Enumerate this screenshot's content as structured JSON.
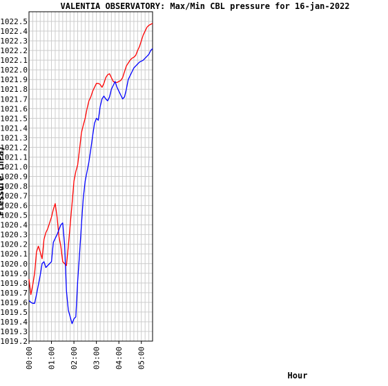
{
  "chart_data": {
    "type": "line",
    "title": "VALENTIA OBSERVATORY: Max/Min CBL pressure for 16-jan-2022",
    "xlabel": "Hour",
    "ylabel": "Pressure (hPa)",
    "ylim": [
      1019.2,
      1022.6
    ],
    "yticks": [
      "1019.2",
      "1019.3",
      "1019.4",
      "1019.5",
      "1019.6",
      "1019.7",
      "1019.8",
      "1019.9",
      "1020.0",
      "1020.1",
      "1020.2",
      "1020.3",
      "1020.4",
      "1020.5",
      "1020.6",
      "1020.7",
      "1020.8",
      "1020.9",
      "1021.0",
      "1021.1",
      "1021.2",
      "1021.3",
      "1021.4",
      "1021.5",
      "1021.6",
      "1021.7",
      "1021.8",
      "1021.9",
      "1022.0",
      "1022.1",
      "1022.2",
      "1022.3",
      "1022.4",
      "1022.5"
    ],
    "xlim_minutes": [
      0,
      330
    ],
    "xticks": [
      {
        "label": "00:00",
        "minutes": 0
      },
      {
        "label": "01:00",
        "minutes": 60
      },
      {
        "label": "02:00",
        "minutes": 120
      },
      {
        "label": "03:00",
        "minutes": 180
      },
      {
        "label": "04:00",
        "minutes": 240
      },
      {
        "label": "05:00",
        "minutes": 300
      }
    ],
    "grid": true,
    "series": [
      {
        "key": "max",
        "color": "#ff0000",
        "x_minutes": [
          0,
          5,
          10,
          15,
          20,
          25,
          30,
          35,
          40,
          45,
          50,
          55,
          60,
          65,
          70,
          75,
          80,
          85,
          90,
          95,
          100,
          105,
          110,
          115,
          120,
          125,
          130,
          135,
          140,
          145,
          150,
          155,
          160,
          165,
          170,
          175,
          180,
          185,
          190,
          195,
          200,
          205,
          210,
          215,
          220,
          225,
          230,
          235,
          240,
          245,
          250,
          255,
          260,
          265,
          270,
          275,
          280,
          285,
          290,
          295,
          300,
          305,
          310,
          315,
          320,
          325,
          330
        ],
        "values": [
          1019.84,
          1019.68,
          1019.78,
          1019.9,
          1020.12,
          1020.18,
          1020.12,
          1020.05,
          1020.25,
          1020.32,
          1020.36,
          1020.42,
          1020.48,
          1020.56,
          1020.62,
          1020.48,
          1020.28,
          1020.18,
          1020.02,
          1020.0,
          1019.98,
          1020.18,
          1020.4,
          1020.62,
          1020.85,
          1020.95,
          1021.02,
          1021.18,
          1021.35,
          1021.43,
          1021.5,
          1021.6,
          1021.68,
          1021.72,
          1021.78,
          1021.82,
          1021.86,
          1021.86,
          1021.85,
          1021.82,
          1021.86,
          1021.92,
          1021.95,
          1021.96,
          1021.92,
          1021.88,
          1021.87,
          1021.87,
          1021.88,
          1021.89,
          1021.92,
          1021.98,
          1022.04,
          1022.07,
          1022.1,
          1022.12,
          1022.13,
          1022.15,
          1022.2,
          1022.24,
          1022.3,
          1022.36,
          1022.4,
          1022.44,
          1022.46,
          1022.47,
          1022.48
        ]
      },
      {
        "key": "min",
        "color": "#0000ff",
        "x_minutes": [
          0,
          5,
          10,
          15,
          20,
          25,
          30,
          35,
          40,
          45,
          50,
          55,
          60,
          65,
          70,
          75,
          80,
          85,
          90,
          95,
          100,
          105,
          110,
          115,
          120,
          125,
          130,
          135,
          140,
          145,
          150,
          155,
          160,
          165,
          170,
          175,
          180,
          185,
          190,
          195,
          200,
          205,
          210,
          215,
          220,
          225,
          230,
          235,
          240,
          245,
          250,
          255,
          260,
          265,
          270,
          275,
          280,
          285,
          290,
          295,
          300,
          305,
          310,
          315,
          320,
          325,
          330
        ],
        "values": [
          1019.62,
          1019.6,
          1019.59,
          1019.59,
          1019.68,
          1019.78,
          1019.88,
          1020.0,
          1020.02,
          1019.96,
          1019.98,
          1020.0,
          1020.02,
          1020.22,
          1020.26,
          1020.3,
          1020.35,
          1020.4,
          1020.42,
          1020.2,
          1019.72,
          1019.52,
          1019.45,
          1019.38,
          1019.43,
          1019.45,
          1019.82,
          1020.1,
          1020.4,
          1020.68,
          1020.85,
          1020.95,
          1021.05,
          1021.18,
          1021.32,
          1021.45,
          1021.5,
          1021.48,
          1021.62,
          1021.7,
          1021.73,
          1021.7,
          1021.68,
          1021.72,
          1021.8,
          1021.84,
          1021.88,
          1021.82,
          1021.78,
          1021.74,
          1021.7,
          1021.72,
          1021.8,
          1021.9,
          1021.94,
          1021.98,
          1022.02,
          1022.04,
          1022.06,
          1022.08,
          1022.09,
          1022.1,
          1022.12,
          1022.14,
          1022.16,
          1022.2,
          1022.22
        ]
      }
    ]
  }
}
